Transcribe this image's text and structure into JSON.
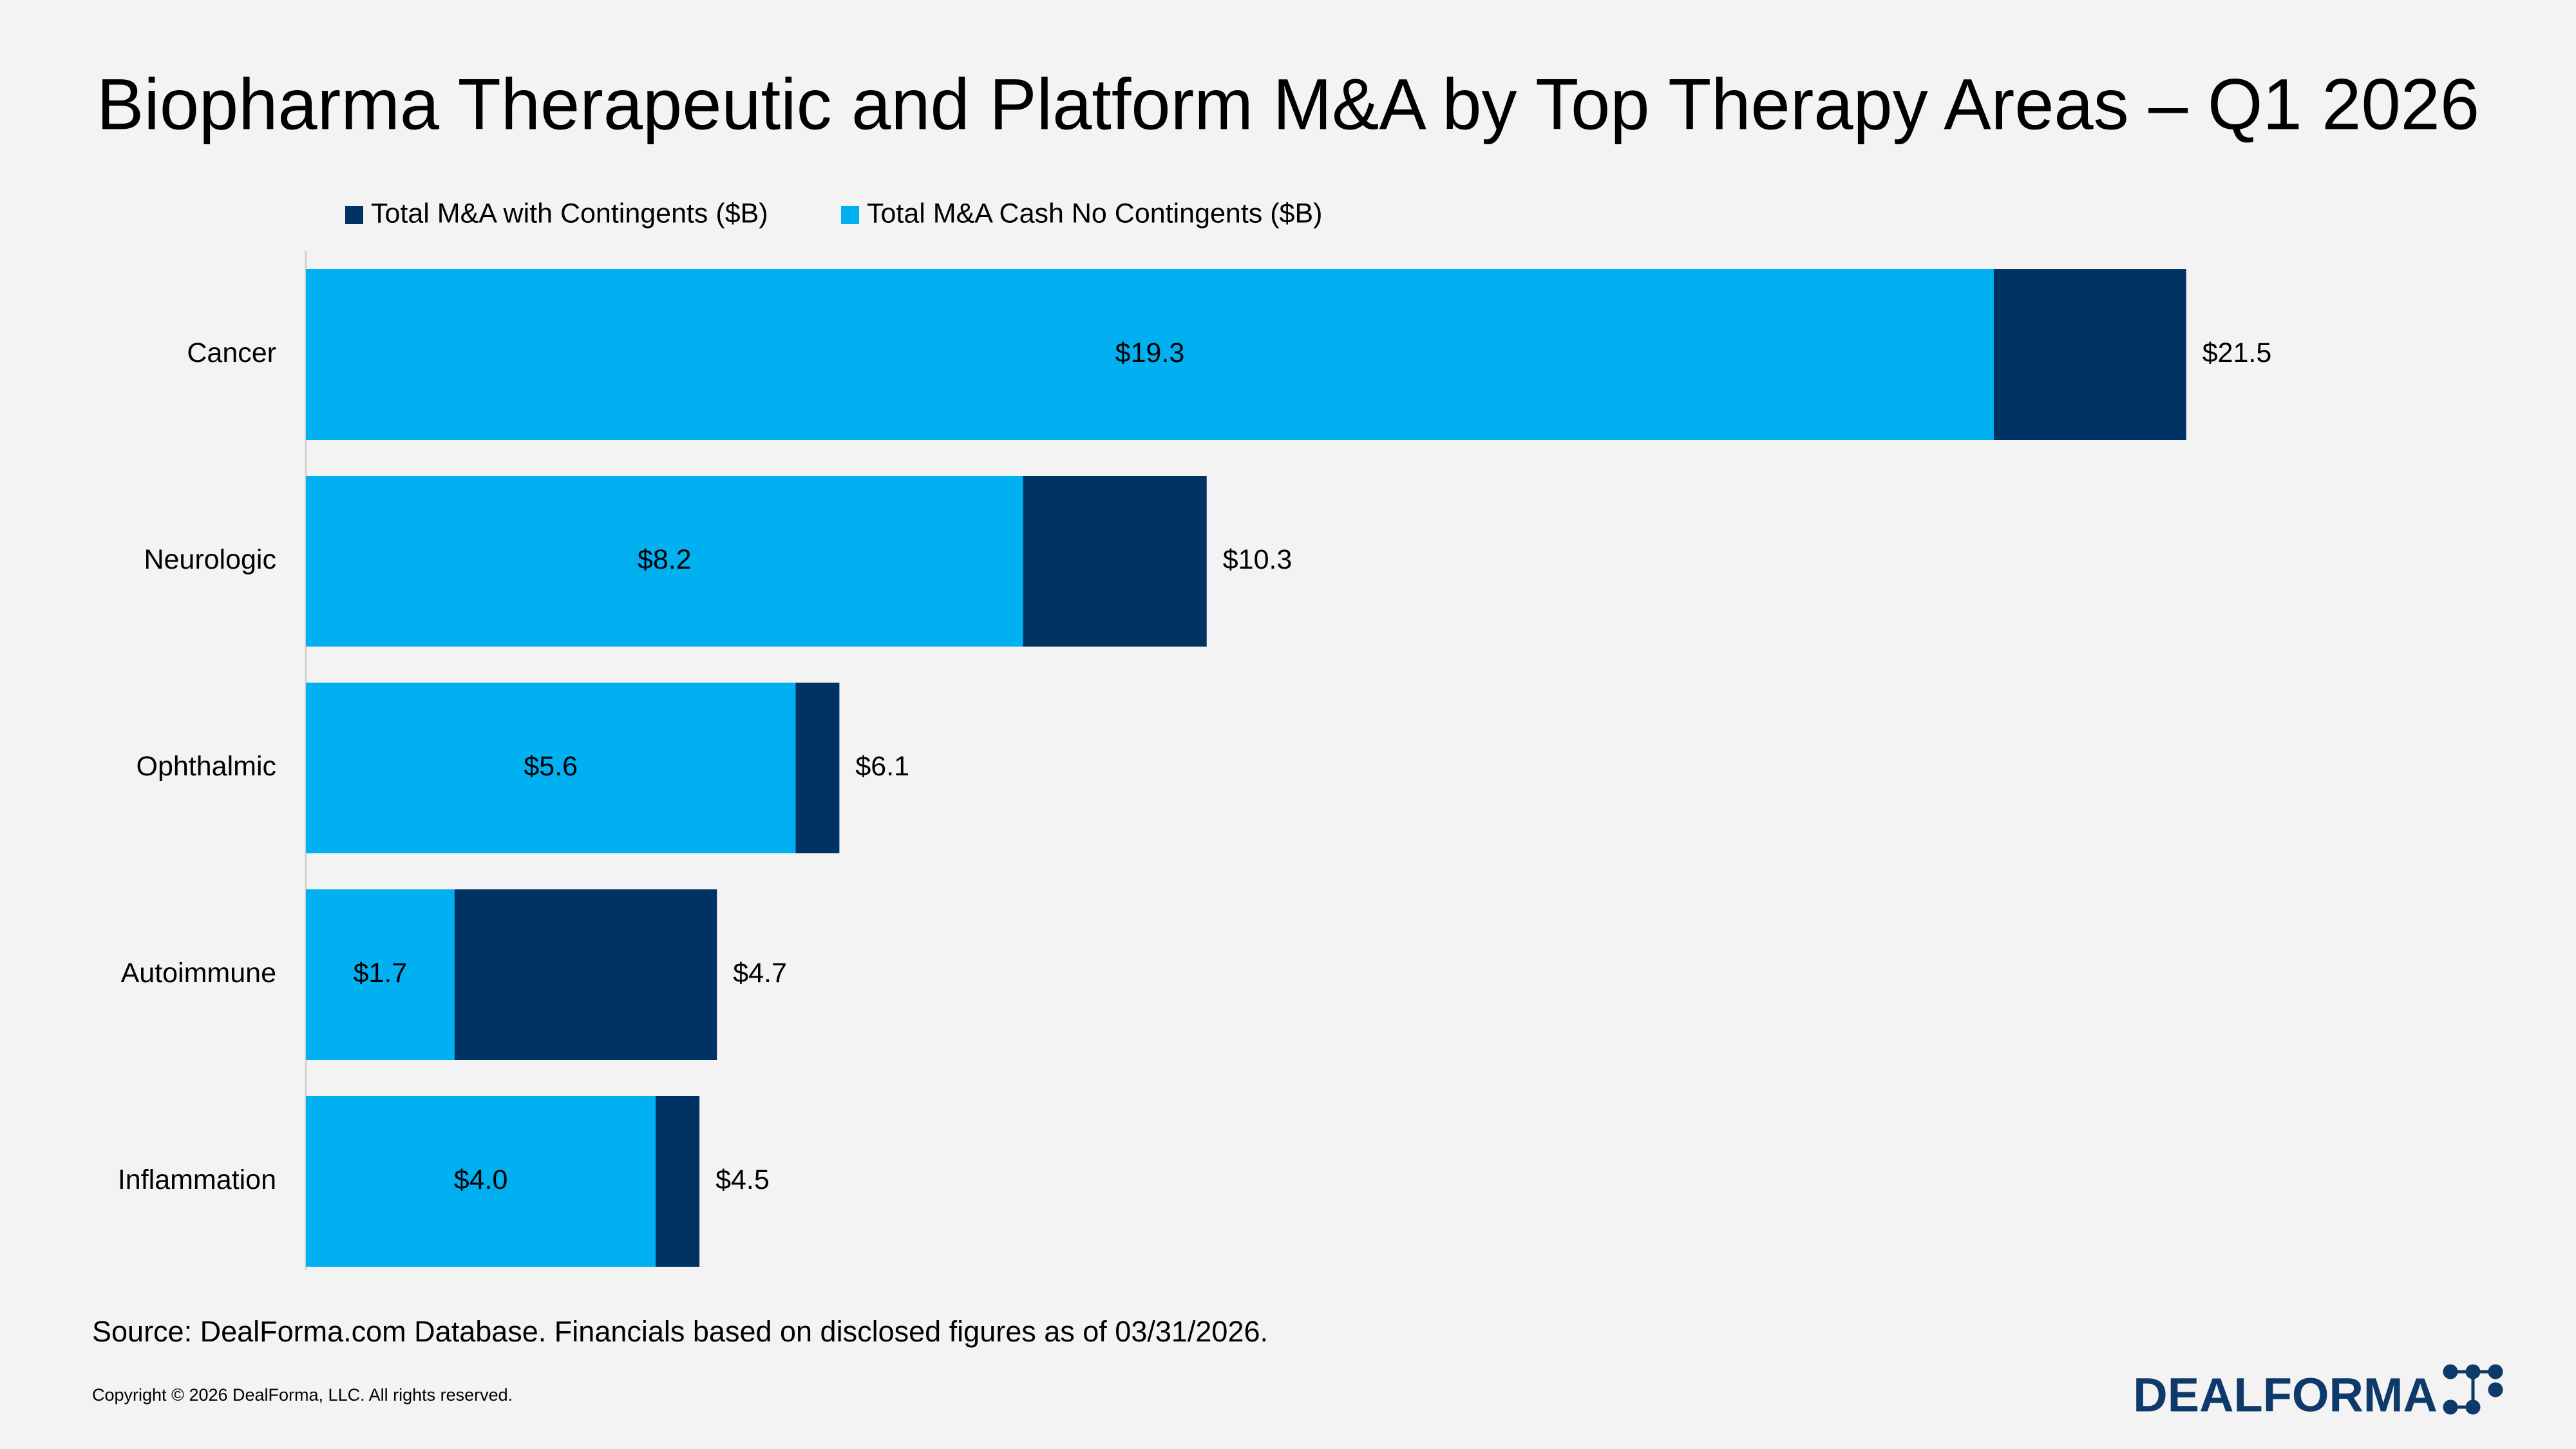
{
  "chart_data": {
    "type": "bar",
    "orientation": "horizontal",
    "title": "Biopharma Therapeutic and Platform M&A by Top Therapy Areas – Q1 2026",
    "categories": [
      "Cancer",
      "Neurologic",
      "Ophthalmic",
      "Autoimmune",
      "Inflammation"
    ],
    "series": [
      {
        "name": "Total M&A with Contingents ($B)",
        "color": "#003263",
        "values": [
          21.5,
          10.3,
          6.1,
          4.7,
          4.5
        ],
        "value_labels": [
          "$21.5",
          "$10.3",
          "$6.1",
          "$4.7",
          "$4.5"
        ],
        "label_position": "outside"
      },
      {
        "name": "Total M&A Cash No Contingents ($B)",
        "color": "#00b0f0",
        "values": [
          19.3,
          8.2,
          5.6,
          1.7,
          4.0
        ],
        "value_labels": [
          "$19.3",
          "$8.2",
          "$5.6",
          "$1.7",
          "$4.0"
        ],
        "label_position": "inside"
      }
    ],
    "overlap": true,
    "legend": "top"
  },
  "footer": {
    "source": "Source: DealForma.com Database. Financials based on disclosed figures as of 03/31/2026.",
    "copyright": "Copyright © 2026 DealForma, LLC. All rights reserved.",
    "logo": "DEALFORMA"
  }
}
